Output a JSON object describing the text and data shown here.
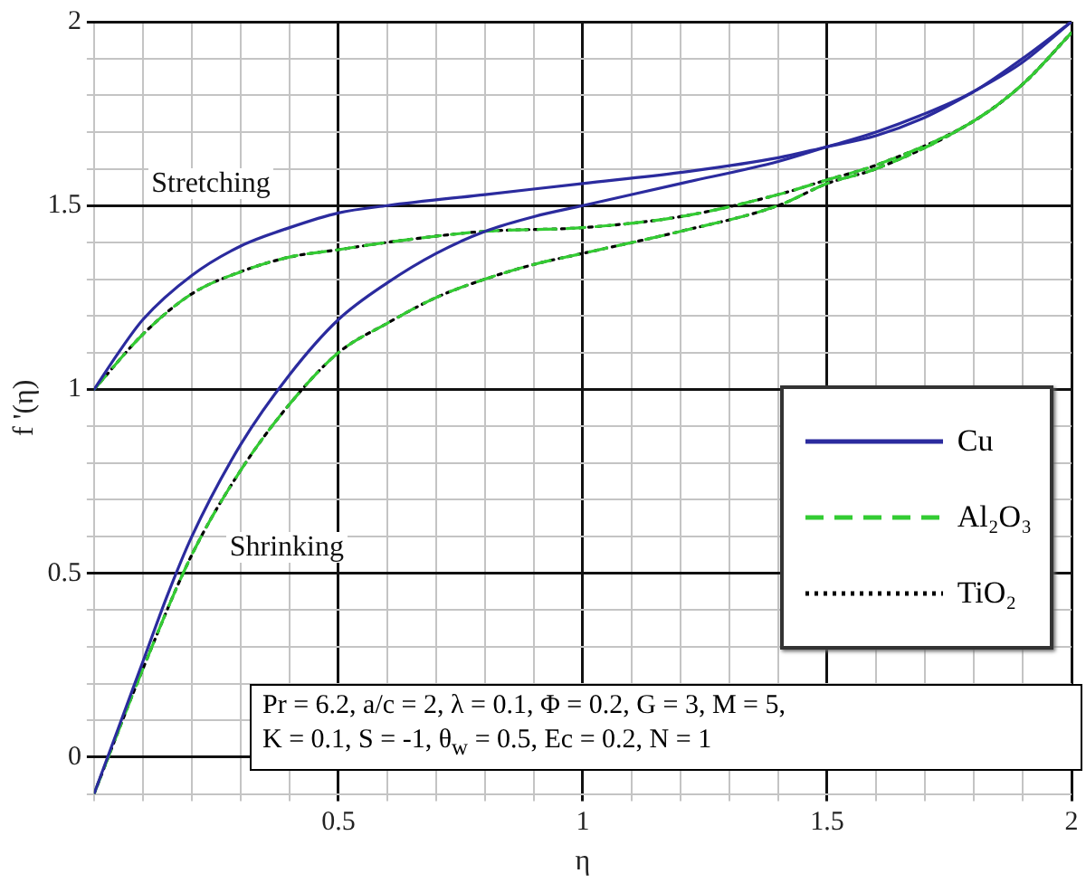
{
  "chart_data": {
    "type": "line",
    "xlabel": "η",
    "ylabel": "f '(η)",
    "xlim": [
      0,
      2
    ],
    "ylim": [
      -0.1,
      2
    ],
    "xticks": [
      {
        "value": 0,
        "label": null
      },
      {
        "value": 0.1,
        "label": null
      },
      {
        "value": 0.2,
        "label": null
      },
      {
        "value": 0.3,
        "label": null
      },
      {
        "value": 0.4,
        "label": null
      },
      0.5,
      {
        "value": 0.6,
        "label": null
      },
      {
        "value": 0.7,
        "label": null
      },
      {
        "value": 0.8,
        "label": null
      },
      {
        "value": 0.9,
        "label": null
      },
      1,
      {
        "value": 1.1,
        "label": null
      },
      {
        "value": 1.2,
        "label": null
      },
      {
        "value": 1.3,
        "label": null
      },
      {
        "value": 1.4,
        "label": null
      },
      1.5,
      {
        "value": 1.6,
        "label": null
      },
      {
        "value": 1.7,
        "label": null
      },
      {
        "value": 1.8,
        "label": null
      },
      {
        "value": 1.9,
        "label": null
      },
      2
    ],
    "yticks": [
      {
        "value": -0.1,
        "label": null
      },
      0,
      {
        "value": 0.1,
        "label": null
      },
      {
        "value": 0.2,
        "label": null
      },
      {
        "value": 0.3,
        "label": null
      },
      {
        "value": 0.4,
        "label": null
      },
      0.5,
      {
        "value": 0.6,
        "label": null
      },
      {
        "value": 0.7,
        "label": null
      },
      {
        "value": 0.8,
        "label": null
      },
      {
        "value": 0.9,
        "label": null
      },
      1,
      {
        "value": 1.1,
        "label": null
      },
      {
        "value": 1.2,
        "label": null
      },
      {
        "value": 1.3,
        "label": null
      },
      {
        "value": 1.4,
        "label": null
      },
      1.5,
      {
        "value": 1.6,
        "label": null
      },
      {
        "value": 1.7,
        "label": null
      },
      {
        "value": 1.8,
        "label": null
      },
      {
        "value": 1.9,
        "label": null
      },
      2
    ],
    "grid": true,
    "legend": "right",
    "marker": "none",
    "series": [
      {
        "name": "Cu",
        "color": "#2b2b9e",
        "line_style": "solid",
        "x": [
          0,
          0.05,
          0.1,
          0.2,
          0.3,
          0.4,
          0.5,
          0.6,
          0.8,
          1,
          1.2,
          1.4,
          1.5,
          1.6,
          1.7,
          1.8,
          1.9,
          2
        ],
        "values": [
          1,
          1.1,
          1.19,
          1.31,
          1.39,
          1.44,
          1.48,
          1.5,
          1.53,
          1.56,
          1.59,
          1.63,
          1.66,
          1.69,
          1.74,
          1.81,
          1.89,
          2
        ]
      },
      {
        "color": "#2b2b9e",
        "line_style": "solid",
        "x": [
          0,
          0.05,
          0.1,
          0.15,
          0.2,
          0.3,
          0.4,
          0.5,
          0.6,
          0.7,
          0.8,
          0.9,
          1,
          1.2,
          1.4,
          1.5,
          1.6,
          1.7,
          1.8,
          1.9,
          2
        ],
        "values": [
          -0.1,
          0.08,
          0.26,
          0.44,
          0.6,
          0.85,
          1.04,
          1.19,
          1.29,
          1.37,
          1.43,
          1.47,
          1.5,
          1.56,
          1.62,
          1.66,
          1.7,
          1.75,
          1.81,
          1.9,
          2
        ]
      },
      {
        "name": "Al₂O₃",
        "color": "#33cc33",
        "line_style": "dashed",
        "x": [
          0,
          0.1,
          0.2,
          0.3,
          0.4,
          0.5,
          0.6,
          0.8,
          1,
          1.2,
          1.4,
          1.5,
          1.6,
          1.8,
          1.9,
          2
        ],
        "values": [
          1,
          1.15,
          1.26,
          1.32,
          1.36,
          1.38,
          1.4,
          1.43,
          1.44,
          1.47,
          1.53,
          1.57,
          1.61,
          1.73,
          1.83,
          1.97
        ]
      },
      {
        "color": "#33cc33",
        "line_style": "dashed",
        "x": [
          0,
          0.1,
          0.2,
          0.3,
          0.4,
          0.5,
          0.6,
          0.7,
          0.8,
          0.9,
          1,
          1.2,
          1.4,
          1.5,
          1.6,
          1.8,
          1.9,
          2
        ],
        "values": [
          -0.1,
          0.24,
          0.55,
          0.78,
          0.96,
          1.1,
          1.18,
          1.25,
          1.3,
          1.34,
          1.37,
          1.43,
          1.5,
          1.56,
          1.6,
          1.73,
          1.83,
          1.97
        ]
      },
      {
        "name": "TiO₂",
        "color": "#000000",
        "line_style": "dotted",
        "x": [
          0,
          0.1,
          0.2,
          0.3,
          0.4,
          0.5,
          0.6,
          0.8,
          1,
          1.2,
          1.4,
          1.5,
          1.6,
          1.8,
          1.9,
          2
        ],
        "values": [
          1,
          1.15,
          1.26,
          1.32,
          1.36,
          1.38,
          1.4,
          1.43,
          1.44,
          1.47,
          1.53,
          1.57,
          1.61,
          1.73,
          1.83,
          1.97
        ]
      },
      {
        "color": "#000000",
        "line_style": "dotted",
        "x": [
          0,
          0.1,
          0.2,
          0.3,
          0.4,
          0.5,
          0.6,
          0.7,
          0.8,
          0.9,
          1,
          1.2,
          1.4,
          1.5,
          1.6,
          1.8,
          1.9,
          2
        ],
        "values": [
          -0.1,
          0.24,
          0.55,
          0.78,
          0.96,
          1.1,
          1.18,
          1.25,
          1.3,
          1.34,
          1.37,
          1.43,
          1.5,
          1.56,
          1.6,
          1.73,
          1.83,
          1.97
        ]
      }
    ],
    "annotations": [
      "Stretching",
      "Shrinking",
      "Pr = 6.2, a/c = 2, λ = 0.1, Φ = 0.2, G = 3, M = 5,",
      "K = 0.1, S = -1, θ$_{w}$ = 0.5, Ec = 0.2, N = 1"
    ]
  }
}
